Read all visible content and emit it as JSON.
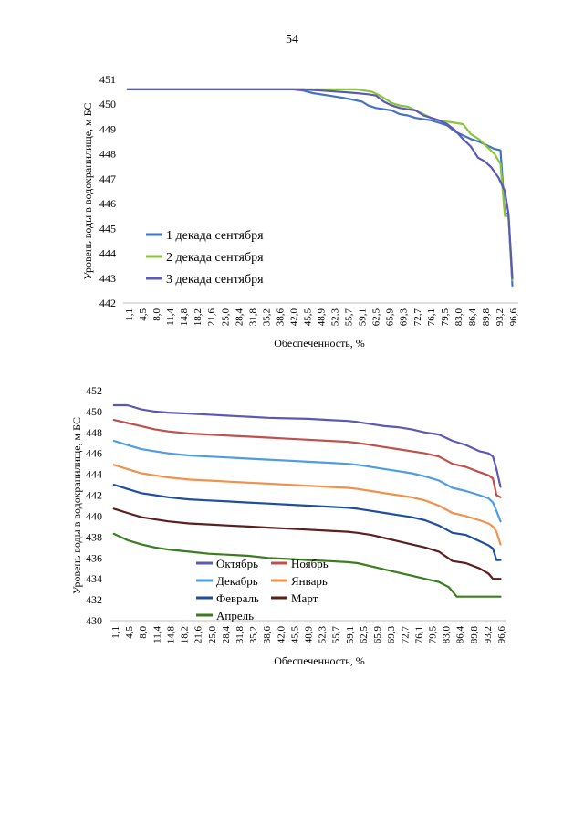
{
  "page_number": "54",
  "chart_data": [
    {
      "type": "line",
      "ylabel": "Уровень воды в водохранилище, м БС",
      "xlabel": "Обеспеченность, %",
      "ylim": [
        442,
        451
      ],
      "yticks": [
        442,
        443,
        444,
        445,
        446,
        447,
        448,
        449,
        450,
        451
      ],
      "xlim": [
        0,
        100
      ],
      "tick_labels": [
        "1,1",
        "4,5",
        "8,0",
        "11,4",
        "14,8",
        "18,2",
        "21,6",
        "25,0",
        "28,4",
        "31,8",
        "35,2",
        "38,6",
        "42,0",
        "45,5",
        "48,9",
        "52,3",
        "55,7",
        "59,1",
        "62,5",
        "65,9",
        "69,3",
        "72,7",
        "76,1",
        "79,5",
        "83,0",
        "86,4",
        "89,8",
        "93,2",
        "96,6"
      ],
      "grid": false,
      "legend_position": "lower-left",
      "colors": {
        "palette": [
          "#4472C4",
          "#8CC43C",
          "#5B59B5"
        ]
      },
      "series": [
        {
          "name": "1 декада сентября",
          "color": "#4472C4",
          "x": [
            1.1,
            20,
            40,
            43,
            45.5,
            48,
            52,
            56,
            59,
            60.5,
            62,
            64,
            66,
            68,
            70,
            72,
            74,
            76,
            78,
            80,
            82,
            84,
            86,
            88,
            90,
            92,
            94,
            95.5,
            96.6,
            97.5,
            98.5
          ],
          "values": [
            450.6,
            450.6,
            450.6,
            450.6,
            450.55,
            450.45,
            450.35,
            450.25,
            450.15,
            450.1,
            449.95,
            449.85,
            449.8,
            449.75,
            449.6,
            449.55,
            449.45,
            449.4,
            449.35,
            449.25,
            449.15,
            448.9,
            448.75,
            448.6,
            448.5,
            448.35,
            448.2,
            448.15,
            445.6,
            445.6,
            442.7
          ]
        },
        {
          "name": "2 декада сентября",
          "color": "#8CC43C",
          "x": [
            1.1,
            20,
            40,
            45.5,
            50,
            55,
            59,
            61,
            63,
            65,
            66.5,
            68,
            70,
            72,
            74,
            76,
            78,
            80,
            82,
            84,
            86,
            88,
            90,
            92,
            94,
            95.5,
            96.6,
            97.5,
            98.5
          ],
          "values": [
            450.6,
            450.6,
            450.6,
            450.6,
            450.6,
            450.6,
            450.6,
            450.55,
            450.5,
            450.35,
            450.2,
            450.05,
            449.95,
            449.9,
            449.75,
            449.6,
            449.45,
            449.35,
            449.3,
            449.25,
            449.2,
            448.8,
            448.6,
            448.3,
            448.0,
            447.6,
            445.5,
            445.5,
            442.9
          ]
        },
        {
          "name": "3 декада сентября",
          "color": "#5B59B5",
          "x": [
            1.1,
            20,
            40,
            42.5,
            45.5,
            50,
            55,
            59,
            62,
            64,
            66,
            68,
            70,
            72,
            74,
            76,
            78,
            80,
            82,
            84,
            86,
            88,
            89.8,
            91.5,
            93.2,
            95,
            96.6,
            97.5,
            98.5
          ],
          "values": [
            450.6,
            450.6,
            450.6,
            450.6,
            450.6,
            450.55,
            450.5,
            450.45,
            450.4,
            450.35,
            450.1,
            449.95,
            449.85,
            449.8,
            449.75,
            449.55,
            449.45,
            449.35,
            449.2,
            448.95,
            448.6,
            448.3,
            447.85,
            447.7,
            447.45,
            447.05,
            446.5,
            445.6,
            443.0
          ]
        }
      ]
    },
    {
      "type": "line",
      "ylabel": "Уровень воды в водохранилище, м БС",
      "xlabel": "Обеспеченность, %",
      "ylim": [
        430,
        452
      ],
      "yticks": [
        430,
        432,
        434,
        436,
        438,
        440,
        442,
        444,
        446,
        448,
        450,
        452
      ],
      "xlim": [
        0,
        100
      ],
      "tick_labels": [
        "1,1",
        "4,5",
        "8,0",
        "11,4",
        "14,8",
        "18,2",
        "21,6",
        "25,0",
        "28,4",
        "31,8",
        "35,2",
        "38,6",
        "42,0",
        "45,5",
        "48,9",
        "52,3",
        "55,7",
        "59,1",
        "62,5",
        "65,9",
        "69,3",
        "72,7",
        "76,1",
        "79,5",
        "83,0",
        "86,4",
        "89,8",
        "93,2",
        "96,6"
      ],
      "grid": false,
      "legend_position": "lower-left",
      "colors": {
        "palette": [
          "#5B59B5",
          "#C0504D",
          "#4F9DE0",
          "#F0914C",
          "#1F4E9E",
          "#5C1F1F",
          "#3A7D1F"
        ]
      },
      "series": [
        {
          "name": "Октябрь",
          "color": "#5B59B5",
          "x": [
            1.1,
            4.5,
            8.0,
            11.4,
            14.8,
            20,
            25,
            30,
            35,
            40,
            45,
            50,
            55,
            60,
            62.5,
            65.9,
            69.3,
            72.7,
            76.1,
            79.5,
            83.0,
            86.4,
            89.8,
            93.2,
            95.5,
            96.6,
            97.5,
            98.5
          ],
          "values": [
            450.6,
            450.6,
            450.2,
            450.0,
            449.9,
            449.8,
            449.7,
            449.6,
            449.5,
            449.4,
            449.35,
            449.3,
            449.2,
            449.1,
            449.0,
            448.8,
            448.6,
            448.5,
            448.3,
            448.0,
            447.8,
            447.2,
            446.8,
            446.2,
            446.0,
            445.7,
            444.5,
            442.8
          ]
        },
        {
          "name": "Ноябрь",
          "color": "#C0504D",
          "x": [
            1.1,
            4.5,
            8.0,
            11.4,
            14.8,
            20,
            25,
            30,
            35,
            40,
            45,
            50,
            55,
            60,
            62.5,
            65.9,
            69.3,
            72.7,
            76.1,
            79.5,
            83.0,
            86.4,
            89.8,
            93.2,
            95.5,
            96.6,
            97.5,
            98.5
          ],
          "values": [
            449.2,
            448.9,
            448.6,
            448.3,
            448.1,
            447.9,
            447.8,
            447.7,
            447.6,
            447.5,
            447.4,
            447.3,
            447.2,
            447.1,
            447.0,
            446.8,
            446.6,
            446.4,
            446.2,
            446.0,
            445.7,
            445.0,
            444.7,
            444.2,
            443.9,
            443.6,
            442.0,
            441.8
          ]
        },
        {
          "name": "Декабрь",
          "color": "#4F9DE0",
          "x": [
            1.1,
            4.5,
            8.0,
            11.4,
            14.8,
            20,
            25,
            30,
            35,
            40,
            45,
            50,
            55,
            60,
            62.5,
            65.9,
            69.3,
            72.7,
            76.1,
            79.5,
            83.0,
            86.4,
            89.8,
            93.2,
            95.5,
            96.6,
            97.5,
            98.5
          ],
          "values": [
            447.2,
            446.8,
            446.4,
            446.2,
            446.0,
            445.8,
            445.7,
            445.6,
            445.5,
            445.4,
            445.3,
            445.2,
            445.1,
            445.0,
            444.9,
            444.7,
            444.5,
            444.3,
            444.1,
            443.8,
            443.4,
            442.7,
            442.4,
            442.0,
            441.7,
            441.3,
            440.5,
            439.5
          ]
        },
        {
          "name": "Январь",
          "color": "#F0914C",
          "x": [
            1.1,
            4.5,
            8.0,
            11.4,
            14.8,
            20,
            25,
            30,
            35,
            40,
            45,
            50,
            55,
            60,
            62.5,
            65.9,
            69.3,
            72.7,
            76.1,
            79.5,
            83.0,
            86.4,
            89.8,
            93.2,
            95.5,
            96.6,
            97.5,
            98.5
          ],
          "values": [
            444.9,
            444.5,
            444.1,
            443.9,
            443.7,
            443.5,
            443.4,
            443.3,
            443.2,
            443.1,
            443.0,
            442.9,
            442.8,
            442.7,
            442.6,
            442.4,
            442.2,
            442.0,
            441.8,
            441.5,
            441.0,
            440.3,
            440.0,
            439.6,
            439.3,
            439.0,
            438.5,
            437.3
          ]
        },
        {
          "name": "Февраль",
          "color": "#1F4E9E",
          "x": [
            1.1,
            4.5,
            8.0,
            11.4,
            14.8,
            20,
            25,
            30,
            35,
            40,
            45,
            50,
            55,
            60,
            62.5,
            65.9,
            69.3,
            72.7,
            76.1,
            79.5,
            83.0,
            86.4,
            89.8,
            93.2,
            95.5,
            96.6,
            97.5,
            98.5
          ],
          "values": [
            443.0,
            442.6,
            442.2,
            442.0,
            441.8,
            441.6,
            441.5,
            441.4,
            441.3,
            441.2,
            441.1,
            441.0,
            440.9,
            440.8,
            440.7,
            440.5,
            440.3,
            440.1,
            439.9,
            439.6,
            439.1,
            438.4,
            438.2,
            437.6,
            437.2,
            436.9,
            435.8,
            435.8
          ]
        },
        {
          "name": "Март",
          "color": "#5C1F1F",
          "x": [
            1.1,
            4.5,
            8.0,
            11.4,
            14.8,
            20,
            25,
            30,
            35,
            40,
            45,
            50,
            55,
            60,
            62.5,
            65.9,
            69.3,
            72.7,
            76.1,
            79.5,
            83.0,
            86.4,
            89.8,
            93.2,
            95.5,
            96.6,
            97.5,
            98.5
          ],
          "values": [
            440.7,
            440.3,
            439.9,
            439.7,
            439.5,
            439.3,
            439.2,
            439.1,
            439.0,
            438.9,
            438.8,
            438.7,
            438.6,
            438.5,
            438.4,
            438.2,
            437.9,
            437.6,
            437.3,
            437.0,
            436.6,
            435.7,
            435.5,
            435.0,
            434.5,
            434.0,
            434.0,
            434.0
          ]
        },
        {
          "name": "Апрель",
          "color": "#3A7D1F",
          "x": [
            1.1,
            4.5,
            8.0,
            11.4,
            14.8,
            20,
            25,
            30,
            35,
            40,
            45,
            50,
            55,
            60,
            62.5,
            65.9,
            69.3,
            72.7,
            76.1,
            79.5,
            83.0,
            85.5,
            86.4,
            87.5,
            89.8,
            93.2,
            96.6,
            98.5
          ],
          "values": [
            438.3,
            437.7,
            437.3,
            437.0,
            436.8,
            436.6,
            436.4,
            436.3,
            436.2,
            436.0,
            435.9,
            435.8,
            435.7,
            435.6,
            435.5,
            435.2,
            434.9,
            434.6,
            434.3,
            434.0,
            433.7,
            433.2,
            432.8,
            432.3,
            432.3,
            432.3,
            432.3,
            432.3
          ]
        }
      ]
    }
  ]
}
